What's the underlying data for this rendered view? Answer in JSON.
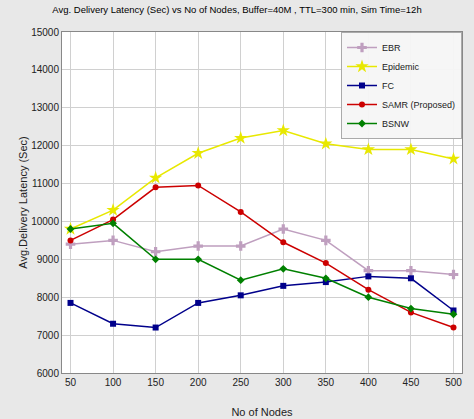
{
  "chart_data": {
    "type": "line",
    "title": "Avg. Delivery Latency (Sec) vs No of Nodes, Buffer=40M , TTL=300 min, Sim Time=12h",
    "x_label": "No of Nodes",
    "y_label": "Avg.Delivery Latency (Sec)",
    "x": [
      50,
      100,
      150,
      200,
      250,
      300,
      350,
      400,
      450,
      500
    ],
    "series": [
      {
        "name": "EBR",
        "color": "#bf9fbf",
        "marker": "plus",
        "values": [
          9400,
          9500,
          9200,
          9350,
          9350,
          9800,
          9500,
          8700,
          8700,
          8600
        ]
      },
      {
        "name": "Epidemic",
        "color": "#e8e800",
        "marker": "star",
        "values": [
          9800,
          10300,
          11150,
          11800,
          12200,
          12400,
          12050,
          11900,
          11900,
          11650
        ]
      },
      {
        "name": "FC",
        "color": "#00008b",
        "marker": "square",
        "values": [
          7850,
          7300,
          7200,
          7850,
          8050,
          8300,
          8400,
          8550,
          8500,
          7650
        ]
      },
      {
        "name": "SAMR (Proposed)",
        "color": "#cc0000",
        "marker": "circle",
        "values": [
          9500,
          10050,
          10900,
          10950,
          10250,
          9450,
          8900,
          8200,
          7600,
          7200
        ]
      },
      {
        "name": "BSNW",
        "color": "#008000",
        "marker": "diamond",
        "values": [
          9800,
          9950,
          9000,
          9000,
          8450,
          8750,
          8500,
          8000,
          7700,
          7550
        ]
      }
    ],
    "xlim": [
      40,
      510
    ],
    "xticks": [
      50,
      100,
      150,
      200,
      250,
      300,
      350,
      400,
      450,
      500
    ],
    "ylim": [
      6000,
      15000
    ],
    "yticks": [
      6000,
      7000,
      8000,
      9000,
      10000,
      11000,
      12000,
      13000,
      14000,
      15000
    ],
    "grid": true,
    "legend": "upper right"
  }
}
